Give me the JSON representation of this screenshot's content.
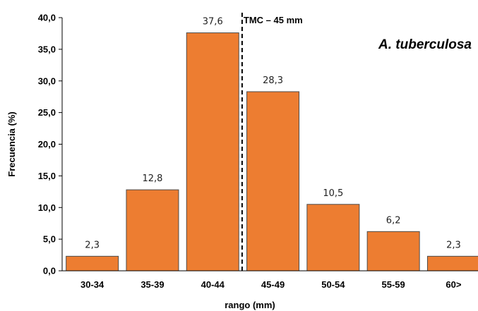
{
  "chart_data": {
    "type": "bar",
    "categories": [
      "30-34",
      "35-39",
      "40-44",
      "45-49",
      "50-54",
      "55-59",
      "60>"
    ],
    "values": [
      2.3,
      12.8,
      37.6,
      28.3,
      10.5,
      6.2,
      2.3
    ],
    "data_labels": [
      "2,3",
      "12,8",
      "37,6",
      "28,3",
      "10,5",
      "6,2",
      "2,3"
    ],
    "xlabel": "rango (mm)",
    "ylabel": "Frecuencia (%)",
    "ylim": [
      0,
      40
    ],
    "yticks": [
      0,
      5,
      10,
      15,
      20,
      25,
      30,
      35,
      40
    ],
    "ytick_labels": [
      "0,0",
      "5,0",
      "10,0",
      "15,0",
      "20,0",
      "25,0",
      "30,0",
      "35,0",
      "40,0"
    ],
    "bar_color": "#ED7D31",
    "bar_edge_color": "#4D4D4D",
    "grid": false,
    "annotations": {
      "reference_line_label": "TMC – 45 mm",
      "species_label": "A. tuberculosa"
    }
  }
}
